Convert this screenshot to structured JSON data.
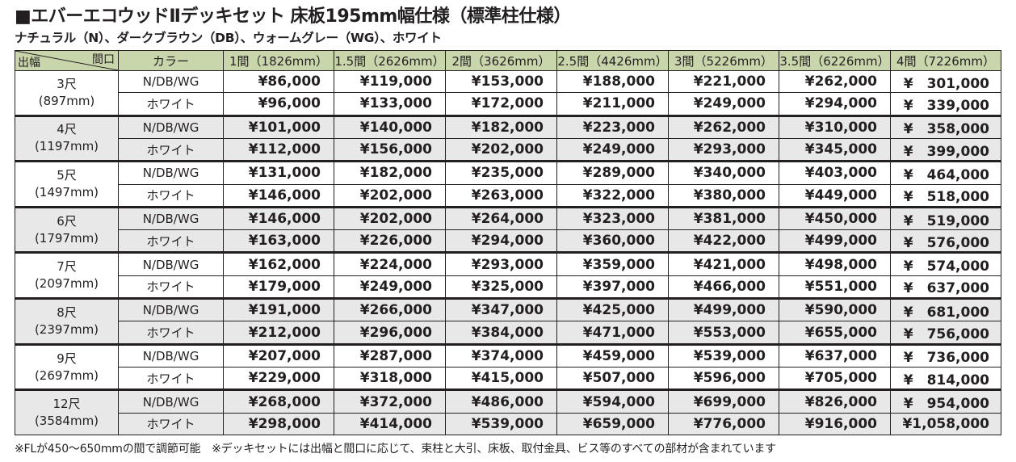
{
  "title": "■エバーエコウッドⅡデッキセット 床板195mm幅仕様（標準柱仕様）",
  "subtitle": "ナチュラル（N）、ダークブラウン（DB）、ウォームグレー（WG）、ホワイト",
  "header": {
    "corner_top": "間口",
    "corner_bottom": "出幅",
    "color_label": "カラー",
    "columns": [
      "1間（1826mm）",
      "1.5間（2626mm）",
      "2間（3626mm）",
      "2.5間（4426mm）",
      "3間（5226mm）",
      "3.5間（6226mm）",
      "4間（7226mm）"
    ]
  },
  "rows": [
    {
      "width": "3尺",
      "mm": "(897mm)",
      "lines": [
        {
          "color": "N/DB/WG",
          "prices": [
            "¥86,000",
            "¥119,000",
            "¥153,000",
            "¥188,000",
            "¥221,000",
            "¥262,000",
            "¥　301,000"
          ]
        },
        {
          "color": "ホワイト",
          "prices": [
            "¥96,000",
            "¥133,000",
            "¥172,000",
            "¥211,000",
            "¥249,000",
            "¥294,000",
            "¥　339,000"
          ]
        }
      ]
    },
    {
      "width": "4尺",
      "mm": "(1197mm)",
      "lines": [
        {
          "color": "N/DB/WG",
          "prices": [
            "¥101,000",
            "¥140,000",
            "¥182,000",
            "¥223,000",
            "¥262,000",
            "¥310,000",
            "¥　358,000"
          ]
        },
        {
          "color": "ホワイト",
          "prices": [
            "¥112,000",
            "¥156,000",
            "¥202,000",
            "¥249,000",
            "¥293,000",
            "¥345,000",
            "¥　399,000"
          ]
        }
      ]
    },
    {
      "width": "5尺",
      "mm": "(1497mm)",
      "lines": [
        {
          "color": "N/DB/WG",
          "prices": [
            "¥131,000",
            "¥182,000",
            "¥235,000",
            "¥289,000",
            "¥340,000",
            "¥403,000",
            "¥　464,000"
          ]
        },
        {
          "color": "ホワイト",
          "prices": [
            "¥146,000",
            "¥202,000",
            "¥263,000",
            "¥322,000",
            "¥380,000",
            "¥449,000",
            "¥　518,000"
          ]
        }
      ]
    },
    {
      "width": "6尺",
      "mm": "(1797mm)",
      "lines": [
        {
          "color": "N/DB/WG",
          "prices": [
            "¥146,000",
            "¥202,000",
            "¥264,000",
            "¥323,000",
            "¥381,000",
            "¥450,000",
            "¥　519,000"
          ]
        },
        {
          "color": "ホワイト",
          "prices": [
            "¥163,000",
            "¥226,000",
            "¥294,000",
            "¥360,000",
            "¥422,000",
            "¥499,000",
            "¥　576,000"
          ]
        }
      ]
    },
    {
      "width": "7尺",
      "mm": "(2097mm)",
      "lines": [
        {
          "color": "N/DB/WG",
          "prices": [
            "¥162,000",
            "¥224,000",
            "¥293,000",
            "¥359,000",
            "¥421,000",
            "¥498,000",
            "¥　574,000"
          ]
        },
        {
          "color": "ホワイト",
          "prices": [
            "¥179,000",
            "¥249,000",
            "¥325,000",
            "¥397,000",
            "¥466,000",
            "¥551,000",
            "¥　637,000"
          ]
        }
      ]
    },
    {
      "width": "8尺",
      "mm": "(2397mm)",
      "lines": [
        {
          "color": "N/DB/WG",
          "prices": [
            "¥191,000",
            "¥266,000",
            "¥347,000",
            "¥425,000",
            "¥499,000",
            "¥590,000",
            "¥　681,000"
          ]
        },
        {
          "color": "ホワイト",
          "prices": [
            "¥212,000",
            "¥296,000",
            "¥384,000",
            "¥471,000",
            "¥553,000",
            "¥655,000",
            "¥　756,000"
          ]
        }
      ]
    },
    {
      "width": "9尺",
      "mm": "(2697mm)",
      "lines": [
        {
          "color": "N/DB/WG",
          "prices": [
            "¥207,000",
            "¥287,000",
            "¥374,000",
            "¥459,000",
            "¥539,000",
            "¥637,000",
            "¥　736,000"
          ]
        },
        {
          "color": "ホワイト",
          "prices": [
            "¥229,000",
            "¥318,000",
            "¥415,000",
            "¥507,000",
            "¥596,000",
            "¥705,000",
            "¥　814,000"
          ]
        }
      ]
    },
    {
      "width": "12尺",
      "mm": "(3584mm)",
      "lines": [
        {
          "color": "N/DB/WG",
          "prices": [
            "¥268,000",
            "¥372,000",
            "¥486,000",
            "¥594,000",
            "¥699,000",
            "¥826,000",
            "¥　954,000"
          ]
        },
        {
          "color": "ホワイト",
          "prices": [
            "¥298,000",
            "¥414,000",
            "¥539,000",
            "¥659,000",
            "¥776,000",
            "¥916,000",
            "¥1,058,000"
          ]
        }
      ]
    }
  ],
  "footnote": "※FLが450〜650mmの間で調節可能　※デッキセットには出幅と間口に応じて、束柱と大引、床板、取付金具、ビス等のすべての部材が含まれています",
  "colors": {
    "header_bg": "#c9d6ac",
    "shaded_bg": "#e8e8e8",
    "text": "#231f20"
  }
}
